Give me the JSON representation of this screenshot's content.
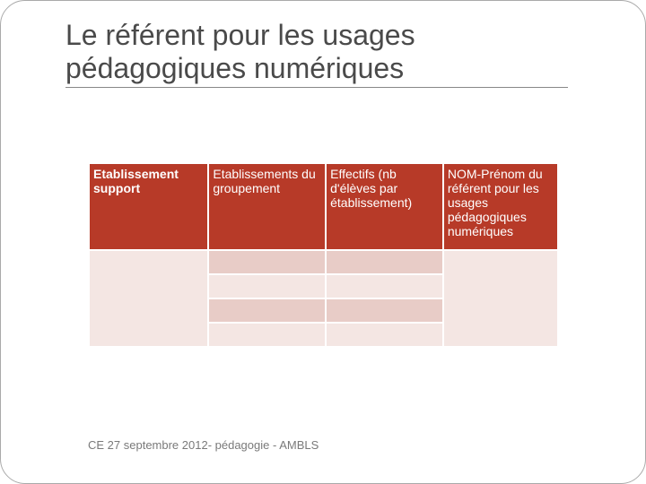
{
  "title_line1": "Le référent pour les usages",
  "title_line2": "pédagogiques numériques",
  "table": {
    "columns": [
      {
        "label": "Etablissement support",
        "bold": true
      },
      {
        "label": "Etablissements du groupement",
        "bold": false
      },
      {
        "label": "Effectifs (nb d'élèves par établissement)",
        "bold": false
      },
      {
        "label": "NOM-Prénom du référent pour les usages pédagogiques numériques",
        "bold": false
      }
    ],
    "header_bg": "#b73a28",
    "header_fg": "#ffffff",
    "row_colors": {
      "a": "#e8ccc7",
      "b": "#f4e6e3"
    },
    "col_widths": [
      "25.5%",
      "25%",
      "25%",
      "24.5%"
    ],
    "data_rows": 4
  },
  "footer": "CE 27 septembre 2012- pédagogie - AMBLS"
}
